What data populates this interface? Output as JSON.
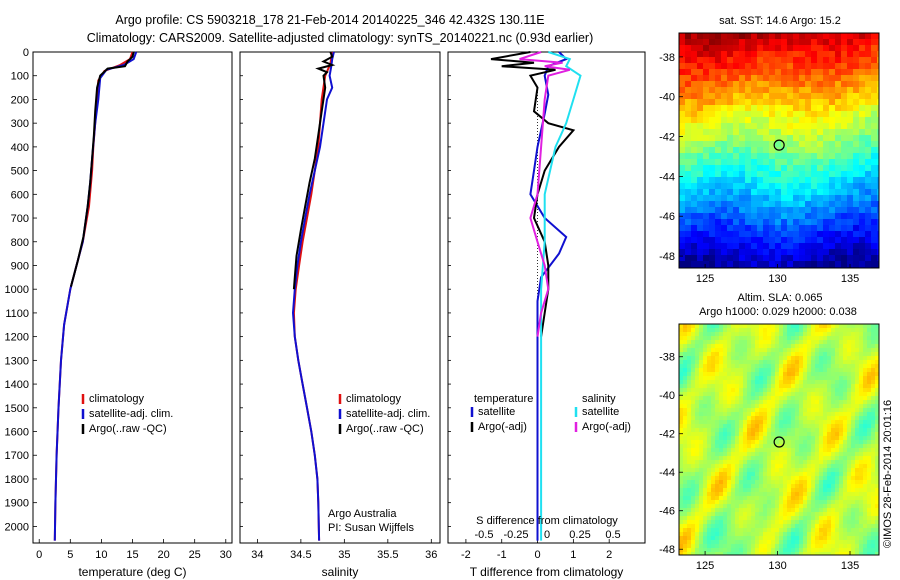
{
  "header": {
    "line1": "Argo profile: CS 5903218_178 21-Feb-2014 20140225_346 42.432S 130.11E",
    "line2": "Climatology: CARS2009. Satellite-adjusted climatology: synTS_20140221.nc (0.93d earlier)"
  },
  "colors": {
    "climatology": "#e01010",
    "satellite": "#1010d0",
    "argo": "#000000",
    "salinity_satellite": "#20e0f0",
    "salinity_argo": "#e020e0"
  },
  "chart_data": [
    {
      "type": "line",
      "id": "temperature",
      "xlabel": "temperature (deg C)",
      "xlim": [
        -1,
        31
      ],
      "ylim": [
        2070,
        0
      ],
      "xticks": [
        0,
        5,
        10,
        15,
        20,
        25,
        30
      ],
      "yticks": [
        0,
        100,
        200,
        300,
        400,
        500,
        600,
        700,
        800,
        900,
        1000,
        1100,
        1200,
        1300,
        1400,
        1500,
        1600,
        1700,
        1800,
        1900,
        2000
      ],
      "legend": [
        "climatology",
        "satellite-adj. clim.",
        "Argo(..raw -QC)"
      ],
      "series": [
        {
          "name": "climatology",
          "color_key": "climatology",
          "points": [
            [
              15.0,
              0
            ],
            [
              14.6,
              30
            ],
            [
              13.0,
              55
            ],
            [
              10.5,
              80
            ],
            [
              9.5,
              120
            ],
            [
              9.3,
              200
            ],
            [
              9.0,
              300
            ],
            [
              8.7,
              400
            ],
            [
              8.5,
              500
            ],
            [
              8.0,
              650
            ],
            [
              7.0,
              800
            ],
            [
              6.0,
              900
            ],
            [
              5.0,
              1000
            ],
            [
              4.0,
              1150
            ],
            [
              3.5,
              1300
            ],
            [
              3.1,
              1500
            ],
            [
              2.8,
              1700
            ],
            [
              2.6,
              1900
            ],
            [
              2.5,
              2060
            ]
          ]
        },
        {
          "name": "satellite-adj. clim.",
          "color_key": "satellite",
          "points": [
            [
              15.6,
              0
            ],
            [
              15.2,
              30
            ],
            [
              13.6,
              55
            ],
            [
              10.8,
              75
            ],
            [
              9.8,
              110
            ],
            [
              9.5,
              200
            ],
            [
              9.0,
              300
            ],
            [
              8.5,
              450
            ],
            [
              8.2,
              550
            ],
            [
              7.8,
              650
            ],
            [
              7.0,
              800
            ],
            [
              6.0,
              900
            ],
            [
              5.0,
              1000
            ],
            [
              4.0,
              1150
            ],
            [
              3.5,
              1300
            ],
            [
              3.1,
              1500
            ],
            [
              2.8,
              1700
            ],
            [
              2.6,
              1900
            ],
            [
              2.5,
              2060
            ]
          ]
        },
        {
          "name": "Argo(..raw -QC)",
          "color_key": "argo",
          "points": [
            [
              15.2,
              0
            ],
            [
              15.0,
              20
            ],
            [
              14.2,
              40
            ],
            [
              13.8,
              60
            ],
            [
              11.0,
              70
            ],
            [
              9.8,
              100
            ],
            [
              9.3,
              150
            ],
            [
              9.0,
              250
            ],
            [
              8.8,
              350
            ],
            [
              8.5,
              450
            ],
            [
              8.2,
              550
            ],
            [
              7.8,
              650
            ],
            [
              7.1,
              780
            ],
            [
              6.2,
              880
            ],
            [
              5.1,
              990
            ]
          ]
        }
      ]
    },
    {
      "type": "line",
      "id": "salinity",
      "xlabel": "salinity",
      "xlim": [
        33.8,
        36.1
      ],
      "ylim": [
        2070,
        0
      ],
      "xticks": [
        34,
        34.5,
        35,
        35.5,
        36
      ],
      "legend": [
        "climatology",
        "satellite-adj. clim.",
        "Argo(..raw -QC)"
      ],
      "annotation": [
        "Argo Australia",
        "PI: Susan Wijffels"
      ],
      "series": [
        {
          "name": "climatology",
          "color_key": "climatology",
          "points": [
            [
              34.86,
              0
            ],
            [
              34.84,
              50
            ],
            [
              34.78,
              100
            ],
            [
              34.74,
              200
            ],
            [
              34.72,
              300
            ],
            [
              34.7,
              400
            ],
            [
              34.66,
              500
            ],
            [
              34.62,
              600
            ],
            [
              34.57,
              700
            ],
            [
              34.52,
              800
            ],
            [
              34.48,
              900
            ],
            [
              34.44,
              1000
            ],
            [
              34.42,
              1100
            ],
            [
              34.43,
              1200
            ],
            [
              34.47,
              1300
            ],
            [
              34.52,
              1400
            ],
            [
              34.57,
              1500
            ],
            [
              34.62,
              1600
            ],
            [
              34.66,
              1700
            ],
            [
              34.69,
              1800
            ],
            [
              34.7,
              1900
            ],
            [
              34.71,
              2060
            ]
          ]
        },
        {
          "name": "satellite-adj. clim.",
          "color_key": "satellite",
          "points": [
            [
              34.88,
              0
            ],
            [
              34.86,
              30
            ],
            [
              34.85,
              60
            ],
            [
              34.83,
              100
            ],
            [
              34.86,
              150
            ],
            [
              34.8,
              200
            ],
            [
              34.76,
              300
            ],
            [
              34.72,
              400
            ],
            [
              34.66,
              500
            ],
            [
              34.6,
              600
            ],
            [
              34.55,
              700
            ],
            [
              34.5,
              800
            ],
            [
              34.46,
              900
            ],
            [
              34.43,
              1000
            ],
            [
              34.41,
              1100
            ],
            [
              34.43,
              1200
            ],
            [
              34.47,
              1300
            ],
            [
              34.52,
              1400
            ],
            [
              34.57,
              1500
            ],
            [
              34.62,
              1600
            ],
            [
              34.66,
              1700
            ],
            [
              34.69,
              1800
            ],
            [
              34.7,
              1900
            ],
            [
              34.71,
              2060
            ]
          ]
        },
        {
          "name": "Argo(..raw -QC)",
          "color_key": "argo",
          "points": [
            [
              34.84,
              0
            ],
            [
              34.86,
              20
            ],
            [
              34.76,
              40
            ],
            [
              34.86,
              55
            ],
            [
              34.7,
              70
            ],
            [
              34.8,
              85
            ],
            [
              34.76,
              100
            ],
            [
              34.78,
              150
            ],
            [
              34.74,
              250
            ],
            [
              34.7,
              350
            ],
            [
              34.66,
              450
            ],
            [
              34.6,
              550
            ],
            [
              34.55,
              650
            ],
            [
              34.5,
              750
            ],
            [
              34.45,
              860
            ],
            [
              34.43,
              950
            ],
            [
              34.42,
              1000
            ]
          ]
        }
      ]
    },
    {
      "type": "line",
      "id": "difference",
      "xlabel": "T difference from climatology",
      "xlabel2": "S difference from climatology",
      "xlim": [
        -2.5,
        3.0
      ],
      "ylim": [
        2070,
        0
      ],
      "xticks": [
        -2,
        -1,
        0,
        1,
        2
      ],
      "xticks2": [
        "-0.5",
        "-0.25",
        "0",
        "0.25",
        "0.5"
      ],
      "legend_temperature_title": "temperature",
      "legend_salinity_title": "salinity",
      "legend": [
        "satellite",
        "Argo(-adj)",
        "satellite",
        "Argo(-adj)"
      ],
      "series": [
        {
          "name": "satellite",
          "group": "temperature",
          "color_key": "satellite",
          "points": [
            [
              0.6,
              0
            ],
            [
              0.8,
              30
            ],
            [
              0.3,
              60
            ],
            [
              0.2,
              100
            ],
            [
              0.3,
              180
            ],
            [
              0.2,
              260
            ],
            [
              0.0,
              400
            ],
            [
              -0.1,
              500
            ],
            [
              -0.2,
              600
            ],
            [
              0.2,
              700
            ],
            [
              0.8,
              780
            ],
            [
              0.6,
              850
            ],
            [
              0.1,
              950
            ],
            [
              0.0,
              1050
            ],
            [
              0.0,
              1200
            ],
            [
              0.0,
              1500
            ],
            [
              0.0,
              2060
            ]
          ]
        },
        {
          "name": "Argo(-adj)",
          "group": "temperature",
          "color_key": "argo",
          "points": [
            [
              -0.2,
              0
            ],
            [
              -1.3,
              30
            ],
            [
              -0.1,
              45
            ],
            [
              -1.0,
              60
            ],
            [
              0.5,
              75
            ],
            [
              -0.2,
              100
            ],
            [
              0.0,
              150
            ],
            [
              -0.1,
              250
            ],
            [
              0.3,
              300
            ],
            [
              1.0,
              330
            ],
            [
              0.6,
              400
            ],
            [
              0.2,
              500
            ],
            [
              0.0,
              600
            ],
            [
              -0.1,
              700
            ],
            [
              0.2,
              800
            ],
            [
              0.3,
              900
            ],
            [
              0.3,
              1000
            ],
            [
              0.2,
              1100
            ],
            [
              0.1,
              1200
            ]
          ]
        },
        {
          "name": "satellite",
          "group": "salinity",
          "color_key": "salinity_satellite",
          "points": [
            [
              0.3,
              0
            ],
            [
              0.9,
              30
            ],
            [
              0.8,
              60
            ],
            [
              1.2,
              100
            ],
            [
              1.0,
              200
            ],
            [
              0.8,
              300
            ],
            [
              0.5,
              400
            ],
            [
              0.2,
              600
            ],
            [
              0.2,
              800
            ],
            [
              0.1,
              1000
            ],
            [
              0.1,
              1200
            ],
            [
              0.1,
              1500
            ],
            [
              0.1,
              1800
            ],
            [
              0.1,
              2060
            ]
          ]
        },
        {
          "name": "Argo(-adj)",
          "group": "salinity",
          "color_key": "salinity_argo",
          "points": [
            [
              0.1,
              0
            ],
            [
              -0.5,
              30
            ],
            [
              0.7,
              45
            ],
            [
              0.2,
              60
            ],
            [
              0.9,
              75
            ],
            [
              0.3,
              100
            ],
            [
              0.2,
              200
            ],
            [
              0.1,
              400
            ],
            [
              0.0,
              600
            ],
            [
              -0.2,
              700
            ],
            [
              0.0,
              800
            ],
            [
              0.2,
              900
            ],
            [
              0.3,
              1000
            ],
            [
              0.1,
              1100
            ],
            [
              0.0,
              1200
            ]
          ]
        }
      ]
    },
    {
      "type": "heatmap",
      "id": "sst",
      "title": "sat. SST: 14.6 Argo: 15.2",
      "xticks": [
        125,
        130,
        135
      ],
      "yticks": [
        -38,
        -40,
        -42,
        -44,
        -46,
        -48
      ],
      "xlim": [
        123.2,
        137.0
      ],
      "ylim": [
        -48.6,
        -36.8
      ],
      "marker": {
        "lon": 130.11,
        "lat": -42.43
      },
      "colormap": "jet"
    },
    {
      "type": "heatmap",
      "id": "sla",
      "title": "Altim. SLA: 0.065",
      "subtitle": "Argo h1000: 0.029 h2000: 0.038",
      "xticks": [
        125,
        130,
        135
      ],
      "yticks": [
        -38,
        -40,
        -42,
        -44,
        -46,
        -48
      ],
      "xlim": [
        123.2,
        137.0
      ],
      "ylim": [
        -48.3,
        -36.3
      ],
      "marker": {
        "lon": 130.11,
        "lat": -42.43
      },
      "colormap": "jet"
    }
  ],
  "footer": {
    "stamp": "©IMOS 28-Feb-2014 20:01:16"
  }
}
